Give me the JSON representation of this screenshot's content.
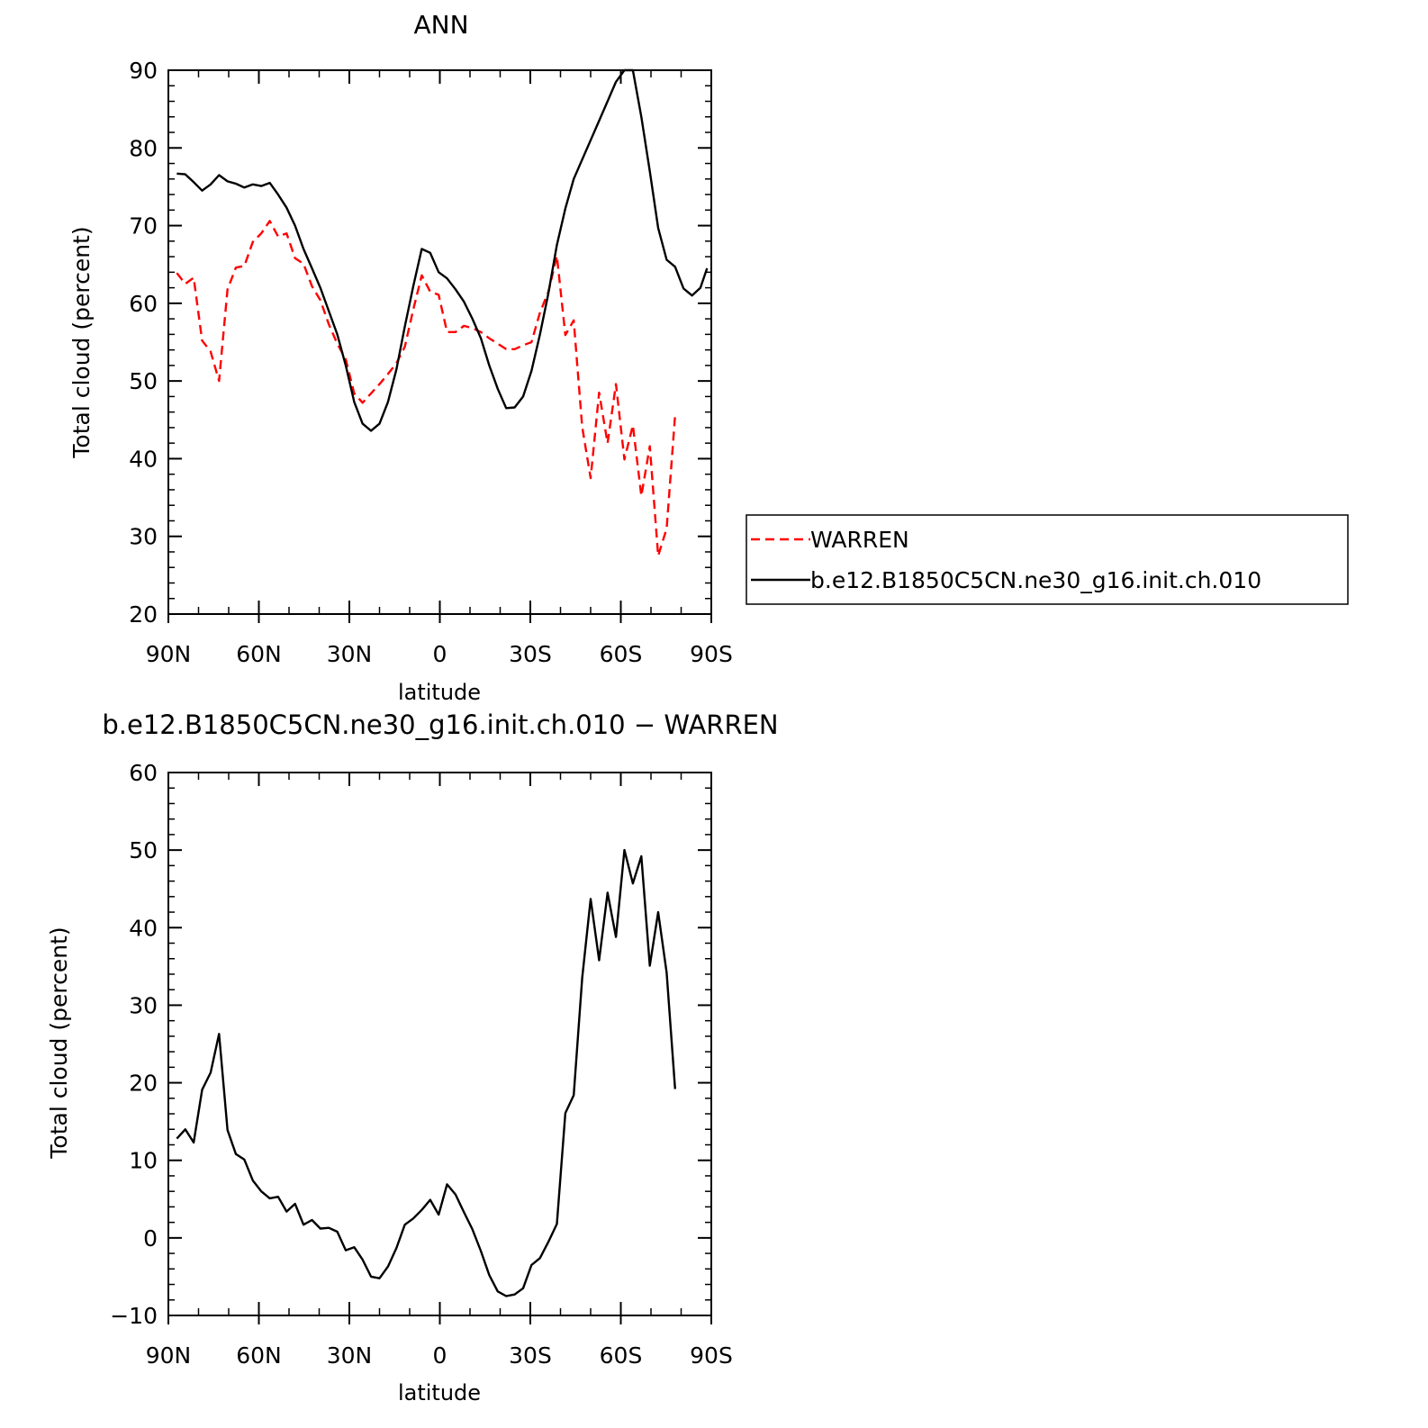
{
  "chart_data": [
    {
      "type": "line",
      "title": "ANN",
      "xlabel": "latitude",
      "ylabel": "Total cloud (percent)",
      "xlim": [
        90,
        -90
      ],
      "ylim": [
        20,
        90
      ],
      "xticks": [
        90,
        60,
        30,
        0,
        -30,
        -60,
        -90
      ],
      "xtick_labels": [
        "90N",
        "60N",
        "30N",
        "0",
        "30S",
        "60S",
        "90S"
      ],
      "yticks": [
        20,
        30,
        40,
        50,
        60,
        70,
        80,
        90
      ],
      "ytick_labels": [
        "20",
        "30",
        "40",
        "50",
        "60",
        "70",
        "80",
        "90"
      ],
      "legend": {
        "position": "right",
        "entries": [
          {
            "label": "WARREN",
            "color": "#ff0000",
            "dash": "dashed"
          },
          {
            "label": "b.e12.B1850C5CN.ne30_g16.init.ch.010",
            "color": "#000000",
            "dash": "solid"
          }
        ]
      },
      "series": [
        {
          "name": "WARREN",
          "color": "#ff0000",
          "dash": "dashed",
          "x": [
            87.2,
            84.4,
            81.6,
            78.8,
            76.0,
            73.2,
            70.4,
            67.6,
            64.8,
            62.0,
            59.2,
            56.4,
            53.6,
            50.8,
            48.0,
            45.2,
            42.4,
            39.6,
            36.8,
            34.0,
            31.2,
            28.4,
            25.6,
            22.8,
            20.0,
            17.2,
            14.4,
            11.6,
            8.8,
            6.0,
            3.2,
            0.4,
            -2.4,
            -5.2,
            -8.0,
            -10.8,
            -13.6,
            -16.4,
            -19.2,
            -22.0,
            -24.8,
            -27.6,
            -30.4,
            -33.2,
            -36.0,
            -38.8,
            -41.6,
            -44.4,
            -47.2,
            -50.0,
            -52.8,
            -55.6,
            -58.4,
            -61.2,
            -64.0,
            -66.8,
            -69.6,
            -72.4,
            -75.2,
            -78.0
          ],
          "y": [
            63.9,
            62.5,
            63.3,
            55.2,
            53.8,
            50.0,
            61.8,
            64.6,
            64.8,
            67.9,
            69.0,
            70.6,
            68.6,
            69.0,
            65.8,
            65.1,
            62.2,
            60.4,
            57.3,
            54.8,
            52.8,
            48.4,
            47.2,
            48.4,
            49.6,
            50.9,
            52.3,
            54.4,
            59.2,
            63.6,
            61.5,
            61.1,
            56.3,
            56.3,
            57.1,
            56.8,
            56.3,
            55.5,
            54.8,
            54.1,
            54.1,
            54.6,
            55.0,
            58.8,
            61.5,
            66.1,
            55.9,
            57.8,
            44.1,
            37.5,
            48.5,
            42.0,
            49.6,
            39.9,
            44.3,
            35.2,
            41.6,
            27.5,
            31.0,
            45.6
          ]
        },
        {
          "name": "b.e12.B1850C5CN.ne30_g16.init.ch.010",
          "color": "#000000",
          "dash": "solid",
          "x": [
            87.2,
            84.4,
            81.6,
            78.8,
            76.0,
            73.2,
            70.4,
            67.6,
            64.8,
            62.0,
            59.2,
            56.4,
            53.6,
            50.8,
            48.0,
            45.2,
            42.4,
            39.6,
            36.8,
            34.0,
            31.2,
            28.4,
            25.6,
            22.8,
            20.0,
            17.2,
            14.4,
            11.6,
            8.8,
            6.0,
            3.2,
            0.4,
            -2.4,
            -5.2,
            -8.0,
            -10.8,
            -13.6,
            -16.4,
            -19.2,
            -22.0,
            -24.8,
            -27.6,
            -30.4,
            -33.2,
            -36.0,
            -38.8,
            -41.6,
            -44.4,
            -47.2,
            -50.0,
            -52.8,
            -55.6,
            -58.4,
            -61.2,
            -64.0,
            -66.8,
            -69.6,
            -72.4,
            -75.2,
            -78.0,
            -80.8,
            -83.6,
            -86.4,
            -88.6
          ],
          "y": [
            76.7,
            76.6,
            75.6,
            74.5,
            75.3,
            76.5,
            75.7,
            75.4,
            74.9,
            75.3,
            75.1,
            75.5,
            74.0,
            72.3,
            70.0,
            67.0,
            64.5,
            62.0,
            59.0,
            56.0,
            52.0,
            47.3,
            44.5,
            43.6,
            44.5,
            47.3,
            51.5,
            57.0,
            62.2,
            67.0,
            66.5,
            64.0,
            63.2,
            61.8,
            60.2,
            58.0,
            55.5,
            52.0,
            49.0,
            46.5,
            46.6,
            48.0,
            51.3,
            56.0,
            61.3,
            67.5,
            72.2,
            76.0,
            78.5,
            81.0,
            83.5,
            86.0,
            88.5,
            90.0,
            90.0,
            84.0,
            77.0,
            69.7,
            65.6,
            64.7,
            61.9,
            61.0,
            62.0,
            64.5
          ]
        }
      ]
    },
    {
      "type": "line",
      "title": "b.e12.B1850C5CN.ne30_g16.init.ch.010 − WARREN",
      "xlabel": "latitude",
      "ylabel": "Total cloud (percent)",
      "xlim": [
        90,
        -90
      ],
      "ylim": [
        -10,
        60
      ],
      "xticks": [
        90,
        60,
        30,
        0,
        -30,
        -60,
        -90
      ],
      "xtick_labels": [
        "90N",
        "60N",
        "30N",
        "0",
        "30S",
        "60S",
        "90S"
      ],
      "yticks": [
        -10,
        0,
        10,
        20,
        30,
        40,
        50,
        60
      ],
      "ytick_labels": [
        "−10",
        "0",
        "10",
        "20",
        "30",
        "40",
        "50",
        "60"
      ],
      "series": [
        {
          "color": "#000000",
          "dash": "solid",
          "x": [
            87.2,
            84.4,
            81.6,
            78.8,
            76.0,
            73.2,
            70.4,
            67.6,
            64.8,
            62.0,
            59.2,
            56.4,
            53.6,
            50.8,
            48.0,
            45.2,
            42.4,
            39.6,
            36.8,
            34.0,
            31.2,
            28.4,
            25.6,
            22.8,
            20.0,
            17.2,
            14.4,
            11.6,
            8.8,
            6.0,
            3.2,
            0.4,
            -2.4,
            -5.2,
            -8.0,
            -10.8,
            -13.6,
            -16.4,
            -19.2,
            -22.0,
            -24.8,
            -27.6,
            -30.4,
            -33.2,
            -36.0,
            -38.8,
            -41.6,
            -44.4,
            -47.2,
            -50.0,
            -52.8,
            -55.6,
            -58.4,
            -61.2,
            -64.0,
            -66.8,
            -69.6,
            -72.4,
            -75.2,
            -78.0
          ],
          "y": [
            12.8,
            14.0,
            12.3,
            19.1,
            21.3,
            26.3,
            13.9,
            10.8,
            10.1,
            7.4,
            6.0,
            5.1,
            5.3,
            3.4,
            4.4,
            1.7,
            2.3,
            1.2,
            1.3,
            0.8,
            -1.6,
            -1.2,
            -2.8,
            -5.0,
            -5.2,
            -3.7,
            -1.3,
            1.7,
            2.5,
            3.6,
            4.9,
            3.0,
            6.9,
            5.6,
            3.3,
            1.1,
            -1.7,
            -4.8,
            -6.9,
            -7.5,
            -7.3,
            -6.5,
            -3.5,
            -2.6,
            -0.5,
            1.8,
            16.1,
            18.4,
            33.5,
            43.7,
            35.8,
            44.5,
            38.8,
            50.0,
            45.7,
            49.2,
            35.1,
            42.0,
            34.2,
            19.2
          ]
        }
      ]
    }
  ]
}
